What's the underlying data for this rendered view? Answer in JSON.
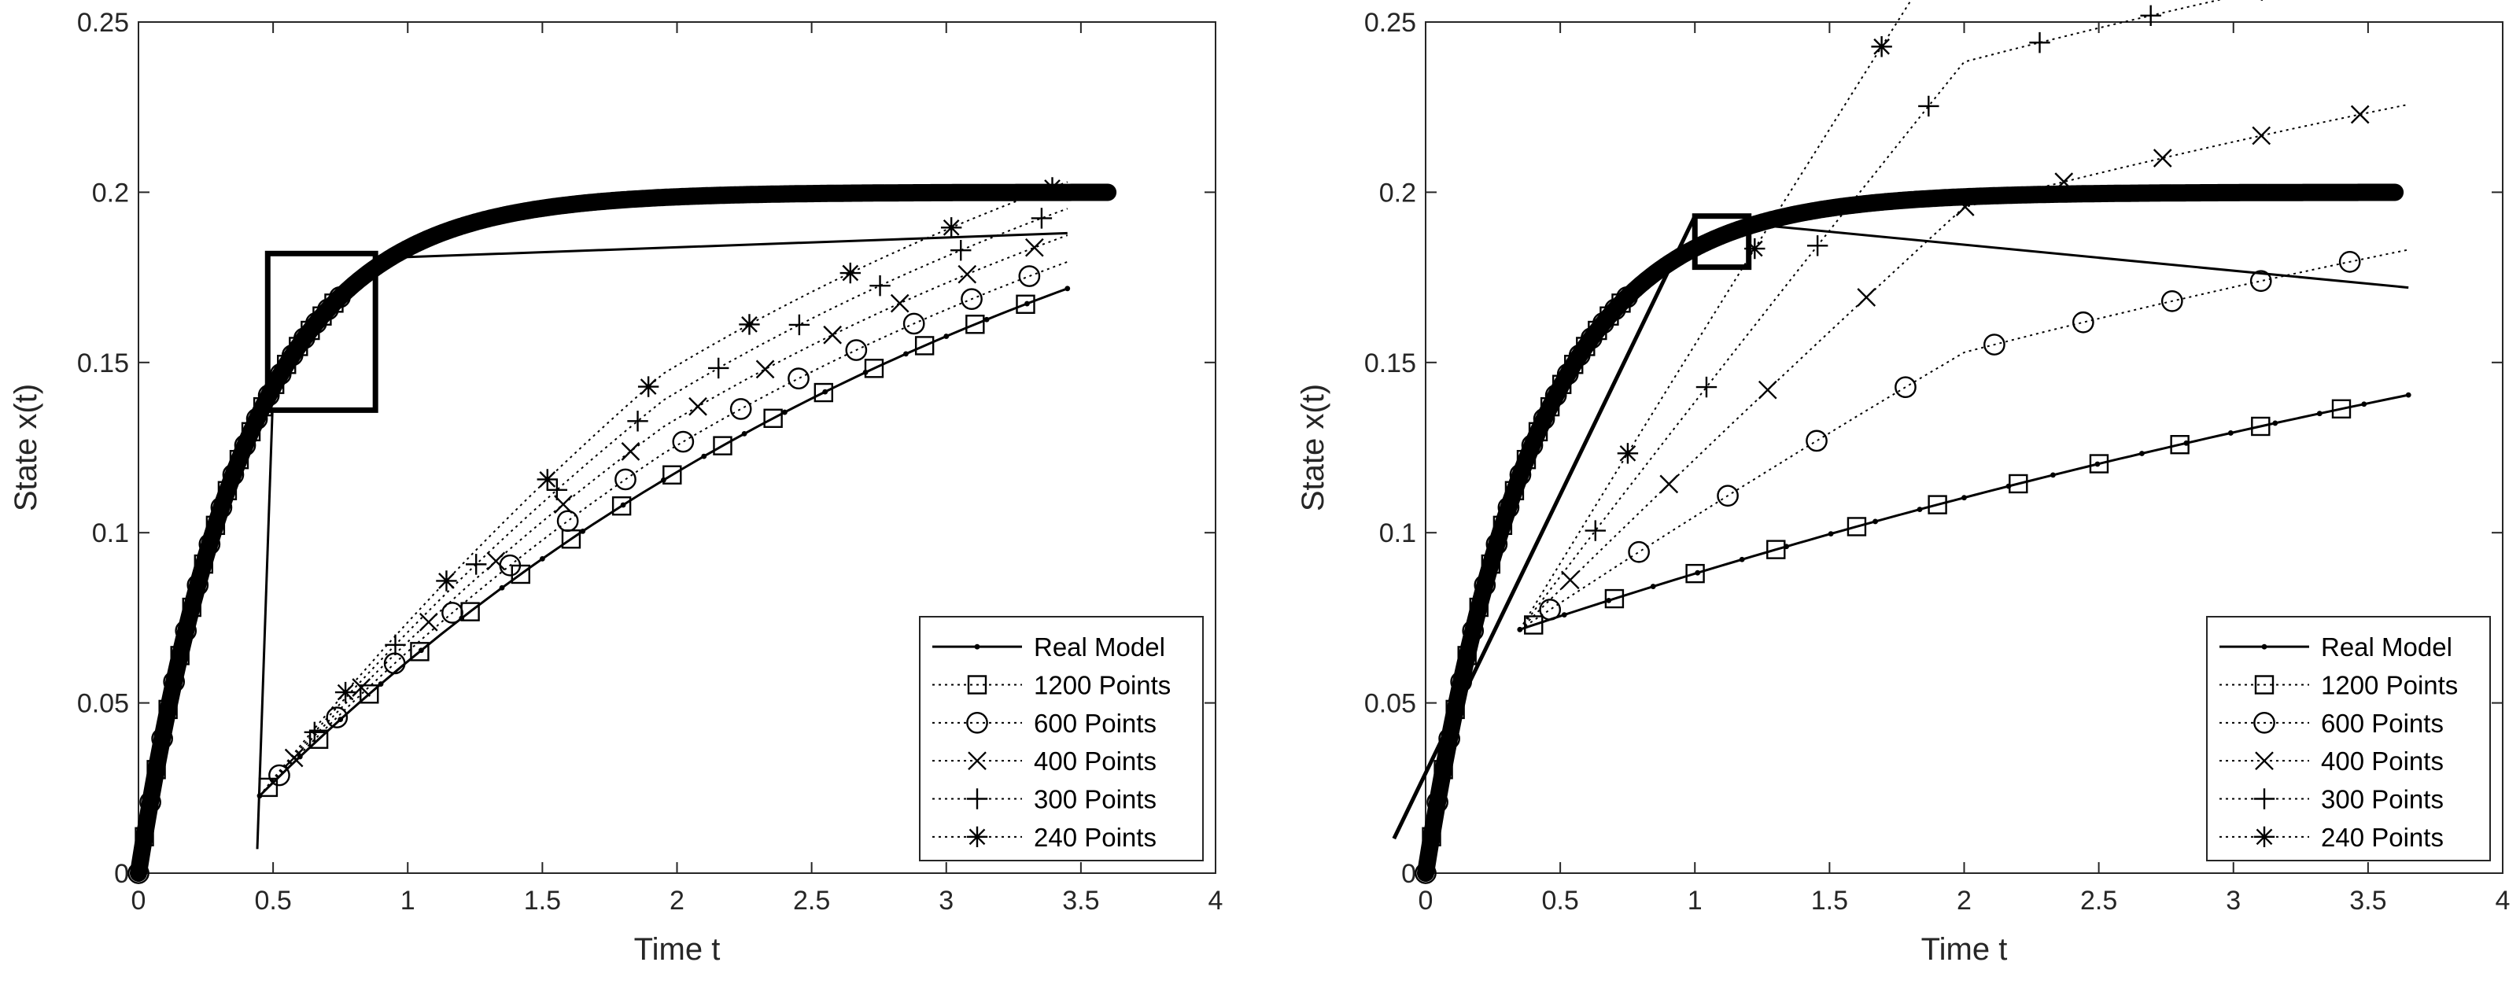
{
  "chart_data": [
    {
      "type": "line",
      "title": "",
      "xlabel": "Time t",
      "ylabel": "State x(t)",
      "xlim": [
        0,
        4
      ],
      "ylim": [
        0,
        0.25
      ],
      "xticks": [
        0,
        0.5,
        1,
        1.5,
        2,
        2.5,
        3,
        3.5,
        4
      ],
      "xtick_labels": [
        "0",
        "0.5",
        "1",
        "1.5",
        "2",
        "2.5",
        "3",
        "3.5",
        "4"
      ],
      "yticks": [
        0,
        0.05,
        0.1,
        0.15,
        0.2,
        0.25
      ],
      "ytick_labels": [
        "0",
        "0.05",
        "0.1",
        "0.15",
        "0.2",
        "0.25"
      ],
      "model": {
        "equation": "x(t) = 0.2 * (1 - exp(-t/0.4))",
        "x_range": [
          0,
          3.6
        ],
        "steady_state": 0.2
      },
      "legend_location": "bottom-right",
      "series": [
        {
          "name": "Real Model",
          "marker": "dot",
          "line": "solid"
        },
        {
          "name": "1200 Points",
          "marker": "square",
          "line": "dotted"
        },
        {
          "name": "600 Points",
          "marker": "circle",
          "line": "dotted"
        },
        {
          "name": "400 Points",
          "marker": "x",
          "line": "dotted"
        },
        {
          "name": "300 Points",
          "marker": "plus",
          "line": "dotted"
        },
        {
          "name": "240 Points",
          "marker": "star",
          "line": "dotted"
        }
      ],
      "zoom": {
        "source_x": [
          0.48,
          0.88
        ],
        "source_y": [
          0.136,
          0.182
        ],
        "inset_x": [
          0.45,
          3.45
        ],
        "inset_y": [
          0.008,
          0.188
        ],
        "offsets": [
          0,
          0.002,
          0.004,
          0.006,
          0.008
        ]
      }
    },
    {
      "type": "line",
      "title": "",
      "xlabel": "Time t",
      "ylabel": "State x(t)",
      "xlim": [
        0,
        4
      ],
      "ylim": [
        0,
        0.25
      ],
      "xticks": [
        0,
        0.5,
        1,
        1.5,
        2,
        2.5,
        3,
        3.5,
        4
      ],
      "xtick_labels": [
        "0",
        "0.5",
        "1",
        "1.5",
        "2",
        "2.5",
        "3",
        "3.5",
        "4"
      ],
      "yticks": [
        0,
        0.05,
        0.1,
        0.15,
        0.2,
        0.25
      ],
      "ytick_labels": [
        "0",
        "0.05",
        "0.1",
        "0.15",
        "0.2",
        "0.25"
      ],
      "model": {
        "equation": "x(t) = 0.2 * (1 - exp(-t/0.4))",
        "x_range": [
          0,
          3.6
        ],
        "steady_state": 0.2
      },
      "legend_location": "bottom-right",
      "series": [
        {
          "name": "Real Model",
          "marker": "dot",
          "line": "solid"
        },
        {
          "name": "1200 Points",
          "marker": "square",
          "line": "dotted"
        },
        {
          "name": "600 Points",
          "marker": "circle",
          "line": "dotted"
        },
        {
          "name": "400 Points",
          "marker": "x",
          "line": "dotted"
        },
        {
          "name": "300 Points",
          "marker": "plus",
          "line": "dotted"
        },
        {
          "name": "240 Points",
          "marker": "star",
          "line": "dotted"
        }
      ],
      "zoom": {
        "source_x": [
          1.0,
          1.2
        ],
        "source_y": [
          0.178,
          0.193
        ],
        "inset_x": [
          0.35,
          3.65
        ],
        "inset_y": [
          0.012,
          0.172
        ],
        "offsets": [
          0,
          0.004,
          0.008,
          0.012,
          0.016
        ]
      }
    }
  ]
}
